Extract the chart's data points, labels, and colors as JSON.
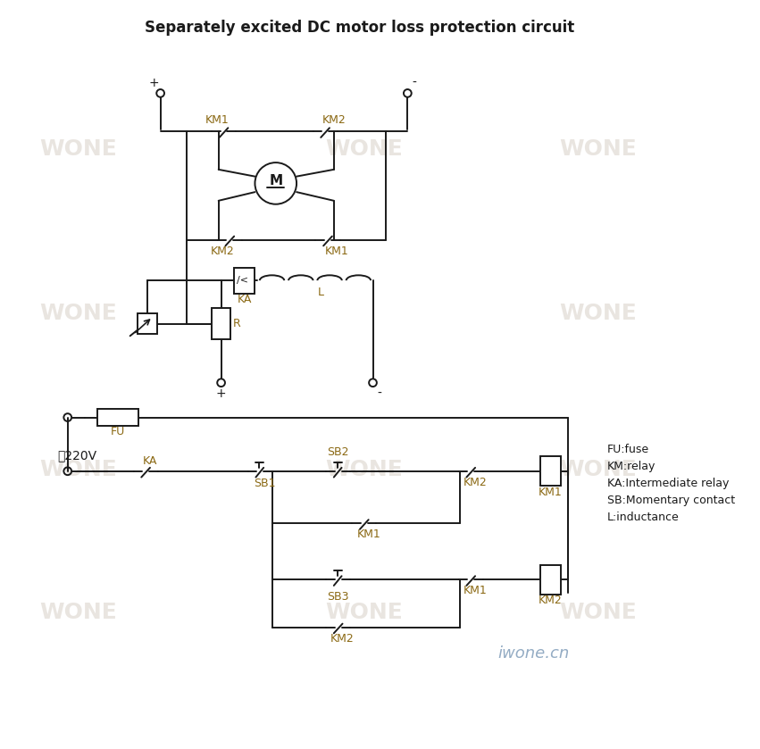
{
  "title": "Separately excited DC motor loss protection circuit",
  "title_fontsize": 12,
  "line_color": "#1a1a1a",
  "label_color": "#8B6914",
  "bg_color": "#ffffff",
  "watermark_color": "#d8d0c8",
  "legend_text": "FU:fuse\nKM:relay\nKA:Intermediate relay\nSB:Momentary contact\nL:inductance",
  "ac_label": "～220V",
  "iwone_text": "iwone.cn"
}
